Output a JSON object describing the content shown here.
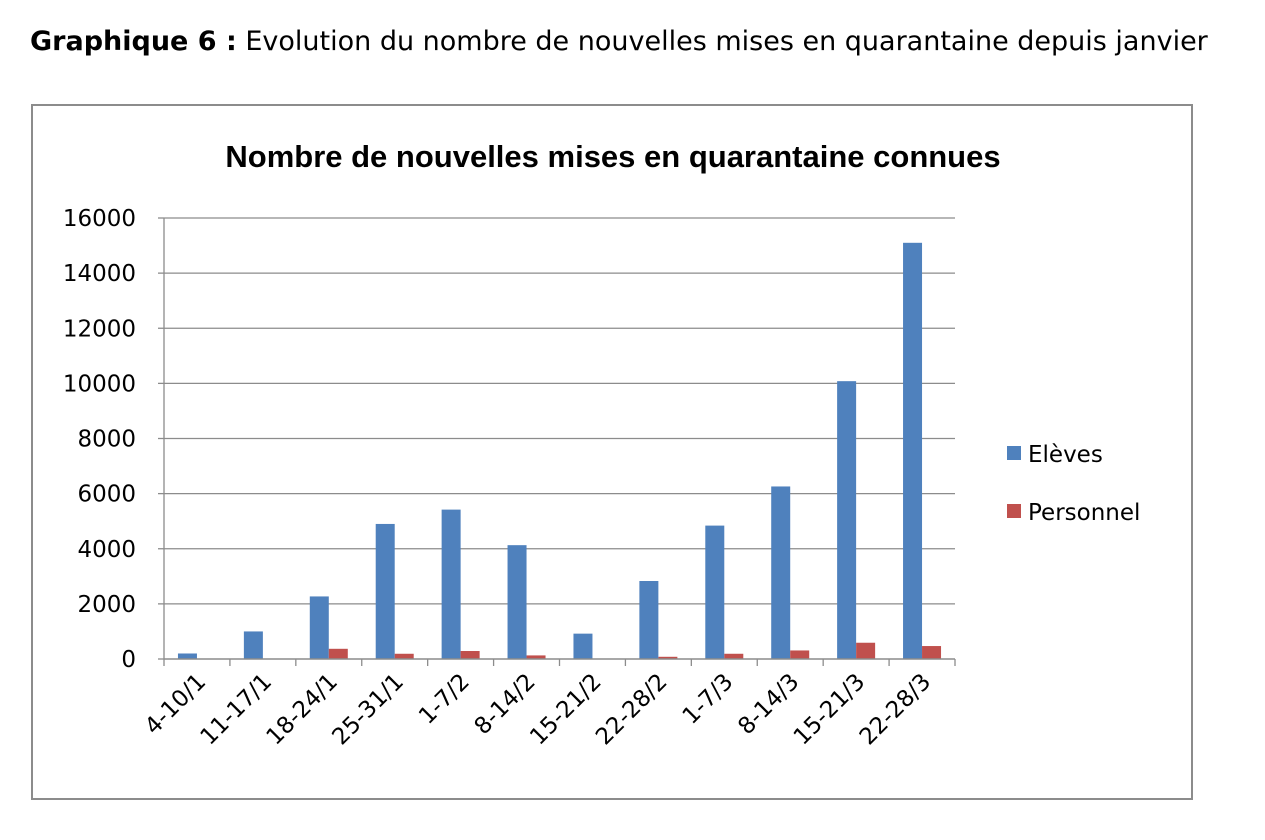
{
  "caption": {
    "prefix": "Graphique 6 :",
    "text": "Evolution du nombre de nouvelles mises en quarantaine depuis janvier"
  },
  "chart_data": {
    "type": "bar",
    "title": "Nombre de nouvelles mises en quarantaine connues",
    "xlabel": "",
    "ylabel": "",
    "ylim": [
      0,
      16000
    ],
    "yticks": [
      0,
      2000,
      4000,
      6000,
      8000,
      10000,
      12000,
      14000,
      16000
    ],
    "grid": true,
    "legend_position": "right",
    "categories": [
      "4-10/1",
      "11-17/1",
      "18-24/1",
      "25-31/1",
      "1-7/2",
      "8-14/2",
      "15-21/2",
      "22-28/2",
      "1-7/3",
      "8-14/3",
      "15-21/3",
      "22-28/3"
    ],
    "series": [
      {
        "name": "Elèves",
        "color": "#4f81bd",
        "values": [
          200,
          1000,
          2270,
          4900,
          5420,
          4130,
          920,
          2830,
          4840,
          6260,
          10080,
          15100
        ]
      },
      {
        "name": "Personnel",
        "color": "#c0504d",
        "values": [
          0,
          0,
          370,
          190,
          290,
          130,
          0,
          80,
          190,
          310,
          590,
          470
        ]
      }
    ]
  }
}
